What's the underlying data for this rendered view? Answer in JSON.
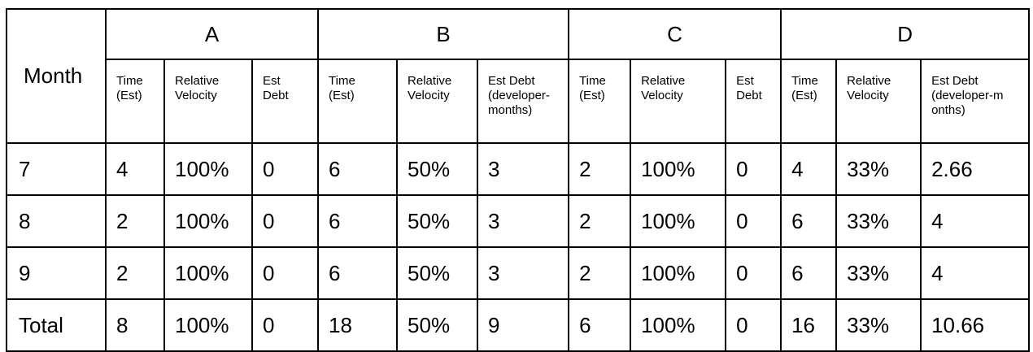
{
  "table": {
    "month_header": "Month",
    "groups": [
      "A",
      "B",
      "C",
      "D"
    ],
    "subheaders": {
      "A": [
        "Time\n(Est)",
        "Relative\nVelocity",
        "Est\nDebt"
      ],
      "B": [
        "Time\n(Est)",
        "Relative\nVelocity",
        "Est Debt\n(developer-\nmonths)"
      ],
      "C": [
        "Time\n(Est)",
        "Relative\nVelocity",
        "Est\nDebt"
      ],
      "D": [
        "Time\n(Est)",
        "Relative\nVelocity",
        "Est Debt\n(developer-m\nonths)"
      ]
    },
    "rows": [
      {
        "month": "7",
        "A": [
          "4",
          "100%",
          "0"
        ],
        "B": [
          "6",
          "50%",
          "3"
        ],
        "C": [
          "2",
          "100%",
          "0"
        ],
        "D": [
          "4",
          "33%",
          "2.66"
        ]
      },
      {
        "month": "8",
        "A": [
          "2",
          "100%",
          "0"
        ],
        "B": [
          "6",
          "50%",
          "3"
        ],
        "C": [
          "2",
          "100%",
          "0"
        ],
        "D": [
          "6",
          "33%",
          "4"
        ]
      },
      {
        "month": "9",
        "A": [
          "2",
          "100%",
          "0"
        ],
        "B": [
          "6",
          "50%",
          "3"
        ],
        "C": [
          "2",
          "100%",
          "0"
        ],
        "D": [
          "6",
          "33%",
          "4"
        ]
      },
      {
        "month": "Total",
        "A": [
          "8",
          "100%",
          "0"
        ],
        "B": [
          "18",
          "50%",
          "9"
        ],
        "C": [
          "6",
          "100%",
          "0"
        ],
        "D": [
          "16",
          "33%",
          "10.66"
        ]
      }
    ]
  }
}
